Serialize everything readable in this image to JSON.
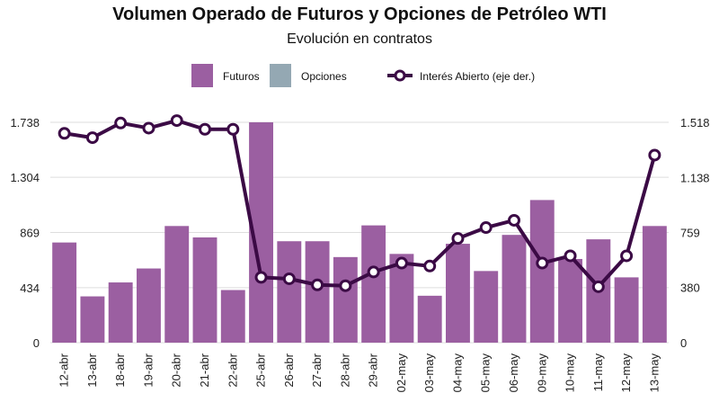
{
  "chart_data": {
    "type": "bar+line",
    "title": "Volumen Operado de Futuros y Opciones de Petróleo WTI",
    "subtitle": "Evolución en contratos",
    "legend": {
      "placement": "top-center",
      "entries": [
        "Futuros",
        "Opciones",
        "Interés Abierto (eje der.)"
      ]
    },
    "colors": {
      "futuros": "#9b5fa1",
      "opciones": "#94a8b3",
      "interes": "#3b0a45"
    },
    "categories": [
      "12-abr",
      "13-abr",
      "18-abr",
      "19-abr",
      "20-abr",
      "21-abr",
      "22-abr",
      "25-abr",
      "26-abr",
      "27-abr",
      "28-abr",
      "29-abr",
      "02-may",
      "03-may",
      "04-may",
      "05-may",
      "06-may",
      "09-may",
      "10-may",
      "11-may",
      "12-may",
      "13-may"
    ],
    "series": [
      {
        "name": "Futuros",
        "axis": "left",
        "kind": "bar",
        "values": [
          790,
          365,
          475,
          585,
          920,
          830,
          415,
          1738,
          800,
          800,
          675,
          925,
          700,
          370,
          780,
          565,
          850,
          1125,
          660,
          815,
          515,
          920
        ]
      },
      {
        "name": "Opciones",
        "axis": "left",
        "kind": "bar",
        "values": [
          0,
          0,
          0,
          0,
          0,
          0,
          0,
          0,
          0,
          0,
          0,
          0,
          0,
          0,
          0,
          0,
          0,
          0,
          0,
          0,
          0,
          0
        ]
      },
      {
        "name": "Interés Abierto (eje der.)",
        "axis": "right",
        "kind": "line",
        "values": [
          1442,
          1412,
          1513,
          1478,
          1530,
          1470,
          1470,
          450,
          440,
          398,
          392,
          487,
          548,
          528,
          718,
          793,
          843,
          548,
          598,
          385,
          598,
          1292
        ]
      }
    ],
    "y_left": {
      "ticks": [
        0,
        434,
        869,
        1304,
        1738
      ],
      "tick_labels": [
        "0",
        "434",
        "869",
        "1.304",
        "1.738"
      ],
      "range": [
        0,
        1738
      ]
    },
    "y_right": {
      "ticks": [
        0,
        380,
        759,
        1138,
        1518
      ],
      "tick_labels": [
        "0",
        "380",
        "759",
        "1.138",
        "1.518"
      ],
      "range": [
        0,
        1518
      ]
    },
    "grid": true
  }
}
